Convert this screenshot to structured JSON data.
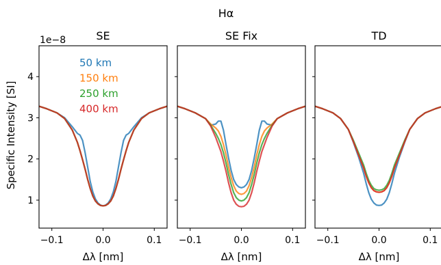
{
  "figure": {
    "suptitle": "Hα",
    "ylabel": "Specific Intensity [SI]",
    "offset_label": "1e−8",
    "y_ticks": [
      1,
      2,
      3,
      4
    ],
    "y_tick_labels": [
      "1",
      "2",
      "3",
      "4"
    ],
    "x_ticks": [
      -0.1,
      0.0,
      0.1
    ],
    "x_tick_labels": [
      "−0.1",
      "0.0",
      "0.1"
    ],
    "xlabel": "Δλ [nm]",
    "legend": {
      "placement": "upper-left (first panel)",
      "entries": [
        {
          "label": "50 km",
          "color": "#1f77b4"
        },
        {
          "label": "150 km",
          "color": "#ff7f0e"
        },
        {
          "label": "250 km",
          "color": "#2ca02c"
        },
        {
          "label": "400 km",
          "color": "#d62728"
        }
      ]
    }
  },
  "chart_data": [
    {
      "type": "line",
      "title": "SE",
      "xlabel": "Δλ [nm]",
      "ylabel": "Specific Intensity [SI]",
      "xlim": [
        -0.125,
        0.125
      ],
      "ylim": [
        0.32,
        4.75
      ],
      "y_scale": "1e-8",
      "series": [
        {
          "name": "50 km",
          "color": "#1f77b4",
          "x": [
            -0.125,
            -0.11,
            -0.09,
            -0.075,
            -0.06,
            -0.05,
            -0.045,
            -0.04,
            -0.035,
            -0.03,
            -0.025,
            -0.02,
            -0.015,
            -0.01,
            -0.005,
            0.0,
            0.005,
            0.01,
            0.015,
            0.02,
            0.025,
            0.03,
            0.035,
            0.04,
            0.045,
            0.05,
            0.06,
            0.075,
            0.09,
            0.11,
            0.125
          ],
          "y": [
            3.28,
            3.22,
            3.12,
            3.0,
            2.78,
            2.62,
            2.58,
            2.45,
            2.15,
            1.8,
            1.45,
            1.2,
            1.03,
            0.93,
            0.88,
            0.86,
            0.88,
            0.93,
            1.03,
            1.2,
            1.45,
            1.8,
            2.15,
            2.45,
            2.58,
            2.62,
            2.78,
            3.0,
            3.12,
            3.22,
            3.28
          ]
        },
        {
          "name": "150 km",
          "color": "#ff7f0e",
          "x": [
            -0.125,
            -0.11,
            -0.09,
            -0.075,
            -0.06,
            -0.05,
            -0.045,
            -0.04,
            -0.035,
            -0.03,
            -0.025,
            -0.02,
            -0.015,
            -0.01,
            -0.005,
            0.0,
            0.005,
            0.01,
            0.015,
            0.02,
            0.025,
            0.03,
            0.035,
            0.04,
            0.045,
            0.05,
            0.06,
            0.075,
            0.09,
            0.11,
            0.125
          ],
          "y": [
            3.28,
            3.22,
            3.12,
            2.98,
            2.7,
            2.4,
            2.2,
            1.98,
            1.75,
            1.5,
            1.28,
            1.1,
            0.98,
            0.91,
            0.87,
            0.86,
            0.87,
            0.91,
            0.98,
            1.1,
            1.28,
            1.5,
            1.75,
            1.98,
            2.2,
            2.4,
            2.7,
            2.98,
            3.12,
            3.22,
            3.28
          ]
        },
        {
          "name": "250 km",
          "color": "#2ca02c",
          "x": [
            -0.125,
            -0.11,
            -0.09,
            -0.075,
            -0.06,
            -0.05,
            -0.045,
            -0.04,
            -0.035,
            -0.03,
            -0.025,
            -0.02,
            -0.015,
            -0.01,
            -0.005,
            0.0,
            0.005,
            0.01,
            0.015,
            0.02,
            0.025,
            0.03,
            0.035,
            0.04,
            0.045,
            0.05,
            0.06,
            0.075,
            0.09,
            0.11,
            0.125
          ],
          "y": [
            3.28,
            3.22,
            3.12,
            2.98,
            2.7,
            2.4,
            2.2,
            1.98,
            1.75,
            1.5,
            1.28,
            1.1,
            0.98,
            0.91,
            0.87,
            0.86,
            0.87,
            0.91,
            0.98,
            1.1,
            1.28,
            1.5,
            1.75,
            1.98,
            2.2,
            2.4,
            2.7,
            2.98,
            3.12,
            3.22,
            3.28
          ]
        },
        {
          "name": "400 km",
          "color": "#d62728",
          "x": [
            -0.125,
            -0.11,
            -0.09,
            -0.075,
            -0.06,
            -0.05,
            -0.045,
            -0.04,
            -0.035,
            -0.03,
            -0.025,
            -0.02,
            -0.015,
            -0.01,
            -0.005,
            0.0,
            0.005,
            0.01,
            0.015,
            0.02,
            0.025,
            0.03,
            0.035,
            0.04,
            0.045,
            0.05,
            0.06,
            0.075,
            0.09,
            0.11,
            0.125
          ],
          "y": [
            3.28,
            3.22,
            3.12,
            2.98,
            2.7,
            2.4,
            2.2,
            1.98,
            1.75,
            1.5,
            1.28,
            1.1,
            0.98,
            0.91,
            0.87,
            0.86,
            0.87,
            0.91,
            0.98,
            1.1,
            1.28,
            1.5,
            1.75,
            1.98,
            2.2,
            2.4,
            2.7,
            2.98,
            3.12,
            3.22,
            3.28
          ]
        }
      ]
    },
    {
      "type": "line",
      "title": "SE Fix",
      "xlabel": "Δλ [nm]",
      "xlim": [
        -0.125,
        0.125
      ],
      "ylim": [
        0.32,
        4.75
      ],
      "y_scale": "1e-8",
      "series": [
        {
          "name": "50 km",
          "color": "#1f77b4",
          "x": [
            -0.125,
            -0.11,
            -0.09,
            -0.07,
            -0.06,
            -0.05,
            -0.045,
            -0.04,
            -0.035,
            -0.03,
            -0.025,
            -0.02,
            -0.015,
            -0.01,
            -0.005,
            0.0,
            0.005,
            0.01,
            0.015,
            0.02,
            0.025,
            0.03,
            0.035,
            0.04,
            0.045,
            0.05,
            0.06,
            0.07,
            0.09,
            0.11,
            0.125
          ],
          "y": [
            3.28,
            3.22,
            3.12,
            2.98,
            2.82,
            2.85,
            2.92,
            2.92,
            2.7,
            2.35,
            2.02,
            1.72,
            1.5,
            1.38,
            1.32,
            1.3,
            1.32,
            1.38,
            1.5,
            1.72,
            2.02,
            2.35,
            2.7,
            2.92,
            2.92,
            2.85,
            2.82,
            2.98,
            3.12,
            3.22,
            3.28
          ]
        },
        {
          "name": "150 km",
          "color": "#ff7f0e",
          "x": [
            -0.125,
            -0.11,
            -0.09,
            -0.07,
            -0.06,
            -0.05,
            -0.045,
            -0.04,
            -0.035,
            -0.03,
            -0.025,
            -0.02,
            -0.015,
            -0.01,
            -0.005,
            0.0,
            0.005,
            0.01,
            0.015,
            0.02,
            0.025,
            0.03,
            0.035,
            0.04,
            0.045,
            0.05,
            0.06,
            0.07,
            0.09,
            0.11,
            0.125
          ],
          "y": [
            3.28,
            3.22,
            3.12,
            2.98,
            2.85,
            2.75,
            2.68,
            2.55,
            2.35,
            2.1,
            1.8,
            1.55,
            1.35,
            1.22,
            1.16,
            1.14,
            1.16,
            1.22,
            1.35,
            1.55,
            1.8,
            2.1,
            2.35,
            2.55,
            2.68,
            2.75,
            2.85,
            2.98,
            3.12,
            3.22,
            3.28
          ]
        },
        {
          "name": "250 km",
          "color": "#2ca02c",
          "x": [
            -0.125,
            -0.11,
            -0.09,
            -0.07,
            -0.06,
            -0.05,
            -0.045,
            -0.04,
            -0.035,
            -0.03,
            -0.025,
            -0.02,
            -0.015,
            -0.01,
            -0.005,
            0.0,
            0.005,
            0.01,
            0.015,
            0.02,
            0.025,
            0.03,
            0.035,
            0.04,
            0.045,
            0.05,
            0.06,
            0.07,
            0.09,
            0.11,
            0.125
          ],
          "y": [
            3.28,
            3.22,
            3.12,
            2.98,
            2.82,
            2.62,
            2.5,
            2.35,
            2.15,
            1.9,
            1.62,
            1.38,
            1.18,
            1.06,
            1.0,
            0.98,
            1.0,
            1.06,
            1.18,
            1.38,
            1.62,
            1.9,
            2.15,
            2.35,
            2.5,
            2.62,
            2.82,
            2.98,
            3.12,
            3.22,
            3.28
          ]
        },
        {
          "name": "400 km",
          "color": "#d62728",
          "x": [
            -0.125,
            -0.11,
            -0.09,
            -0.07,
            -0.06,
            -0.05,
            -0.045,
            -0.04,
            -0.035,
            -0.03,
            -0.025,
            -0.02,
            -0.015,
            -0.01,
            -0.005,
            0.0,
            0.005,
            0.01,
            0.015,
            0.02,
            0.025,
            0.03,
            0.035,
            0.04,
            0.045,
            0.05,
            0.06,
            0.07,
            0.09,
            0.11,
            0.125
          ],
          "y": [
            3.28,
            3.22,
            3.12,
            2.98,
            2.8,
            2.52,
            2.35,
            2.18,
            1.95,
            1.7,
            1.42,
            1.18,
            1.0,
            0.9,
            0.85,
            0.84,
            0.85,
            0.9,
            1.0,
            1.18,
            1.42,
            1.7,
            1.95,
            2.18,
            2.35,
            2.52,
            2.8,
            2.98,
            3.12,
            3.22,
            3.28
          ]
        }
      ]
    },
    {
      "type": "line",
      "title": "TD",
      "xlabel": "Δλ [nm]",
      "xlim": [
        -0.125,
        0.125
      ],
      "ylim": [
        0.32,
        4.75
      ],
      "y_scale": "1e-8",
      "series": [
        {
          "name": "50 km",
          "color": "#1f77b4",
          "x": [
            -0.125,
            -0.11,
            -0.09,
            -0.075,
            -0.06,
            -0.05,
            -0.04,
            -0.03,
            -0.025,
            -0.02,
            -0.015,
            -0.01,
            -0.005,
            0.0,
            0.005,
            0.01,
            0.015,
            0.02,
            0.025,
            0.03,
            0.04,
            0.05,
            0.06,
            0.075,
            0.09,
            0.11,
            0.125
          ],
          "y": [
            3.28,
            3.22,
            3.12,
            2.98,
            2.72,
            2.4,
            2.05,
            1.65,
            1.4,
            1.18,
            1.02,
            0.93,
            0.88,
            0.87,
            0.88,
            0.93,
            1.02,
            1.18,
            1.4,
            1.65,
            2.05,
            2.4,
            2.72,
            2.98,
            3.12,
            3.22,
            3.28
          ]
        },
        {
          "name": "150 km",
          "color": "#ff7f0e",
          "x": [
            -0.125,
            -0.11,
            -0.09,
            -0.075,
            -0.06,
            -0.05,
            -0.04,
            -0.03,
            -0.025,
            -0.02,
            -0.015,
            -0.01,
            -0.005,
            0.0,
            0.005,
            0.01,
            0.015,
            0.02,
            0.025,
            0.03,
            0.04,
            0.05,
            0.06,
            0.075,
            0.09,
            0.11,
            0.125
          ],
          "y": [
            3.28,
            3.22,
            3.12,
            2.98,
            2.72,
            2.42,
            2.1,
            1.78,
            1.58,
            1.42,
            1.3,
            1.23,
            1.2,
            1.19,
            1.2,
            1.23,
            1.3,
            1.42,
            1.58,
            1.78,
            2.1,
            2.42,
            2.72,
            2.98,
            3.12,
            3.22,
            3.28
          ]
        },
        {
          "name": "250 km",
          "color": "#2ca02c",
          "x": [
            -0.125,
            -0.11,
            -0.09,
            -0.075,
            -0.06,
            -0.05,
            -0.04,
            -0.03,
            -0.025,
            -0.02,
            -0.015,
            -0.01,
            -0.005,
            0.0,
            0.005,
            0.01,
            0.015,
            0.02,
            0.025,
            0.03,
            0.04,
            0.05,
            0.06,
            0.075,
            0.09,
            0.11,
            0.125
          ],
          "y": [
            3.28,
            3.22,
            3.12,
            2.98,
            2.72,
            2.45,
            2.15,
            1.85,
            1.65,
            1.48,
            1.36,
            1.28,
            1.25,
            1.24,
            1.25,
            1.28,
            1.36,
            1.48,
            1.65,
            1.85,
            2.15,
            2.45,
            2.72,
            2.98,
            3.12,
            3.22,
            3.28
          ]
        },
        {
          "name": "400 km",
          "color": "#d62728",
          "x": [
            -0.125,
            -0.11,
            -0.09,
            -0.075,
            -0.06,
            -0.05,
            -0.04,
            -0.03,
            -0.025,
            -0.02,
            -0.015,
            -0.01,
            -0.005,
            0.0,
            0.005,
            0.01,
            0.015,
            0.02,
            0.025,
            0.03,
            0.04,
            0.05,
            0.06,
            0.075,
            0.09,
            0.11,
            0.125
          ],
          "y": [
            3.28,
            3.22,
            3.12,
            2.98,
            2.72,
            2.42,
            2.1,
            1.78,
            1.58,
            1.42,
            1.3,
            1.23,
            1.2,
            1.19,
            1.2,
            1.23,
            1.3,
            1.42,
            1.58,
            1.78,
            2.1,
            2.42,
            2.72,
            2.98,
            3.12,
            3.22,
            3.28
          ]
        }
      ]
    }
  ]
}
